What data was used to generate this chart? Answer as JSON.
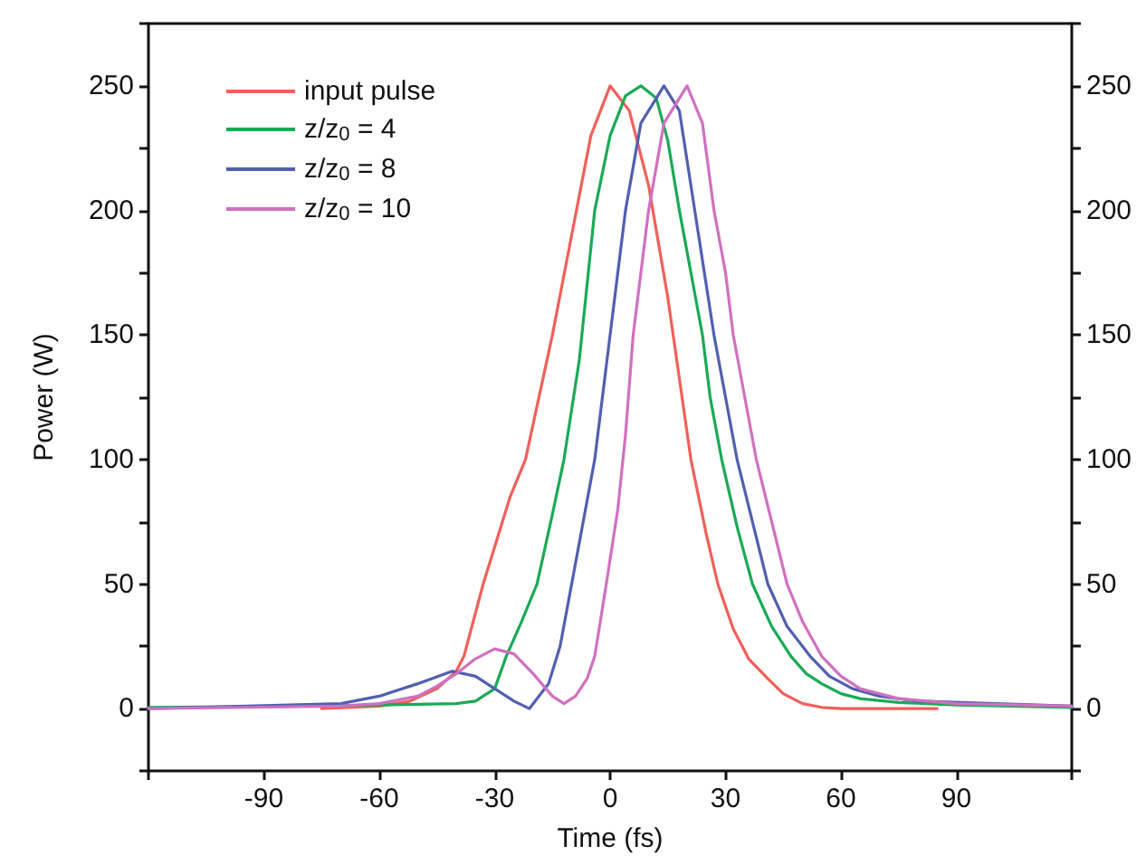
{
  "chart_data": {
    "type": "line",
    "xlabel": "Time (fs)",
    "ylabel": "Power (W)",
    "xlim": [
      -120,
      120
    ],
    "xticks": [
      {
        "value": -120,
        "label": null
      },
      -90,
      -60,
      -30,
      0,
      30,
      60,
      90,
      {
        "value": 120,
        "label": null
      }
    ],
    "ylim": [
      -25,
      275
    ],
    "yticks": [
      {
        "value": -25,
        "label": null
      },
      0,
      {
        "value": 25,
        "label": null
      },
      50,
      {
        "value": 75,
        "label": null
      },
      100,
      {
        "value": 125,
        "label": null
      },
      150,
      {
        "value": 175,
        "label": null
      },
      200,
      {
        "value": 225,
        "label": null
      },
      250,
      {
        "value": 275,
        "label": null
      }
    ],
    "y2lim": [
      -25,
      275
    ],
    "y2ticks": [
      {
        "value": -25,
        "label": null
      },
      0,
      {
        "value": 25,
        "label": null
      },
      50,
      {
        "value": 75,
        "label": null
      },
      100,
      {
        "value": 125,
        "label": null
      },
      150,
      {
        "value": 175,
        "label": null
      },
      200,
      {
        "value": 225,
        "label": null
      },
      250,
      {
        "value": 275,
        "label": null
      }
    ],
    "grid": false,
    "legend": "top left",
    "marker": "none",
    "line_style": "solid",
    "series": [
      {
        "name": "input pulse",
        "color": "#f0605a",
        "x": [
          -75,
          -60,
          -52,
          -45,
          -40,
          -38,
          -33,
          -30,
          -26,
          -22,
          -15,
          -10,
          -5,
          0,
          5,
          10,
          15,
          21,
          25,
          28,
          32,
          36,
          41,
          45,
          50,
          55,
          60,
          85
        ],
        "values": [
          0,
          1,
          3,
          8,
          15,
          21,
          50,
          65,
          85,
          100,
          150,
          190,
          230,
          250,
          240,
          210,
          165,
          100,
          70,
          50,
          32,
          20,
          12,
          6,
          2,
          0.5,
          0,
          0
        ]
      },
      {
        "name": "z/z$_{0}$ = 4",
        "color": "#1aaa55",
        "x": [
          -120,
          -80,
          -60,
          -40,
          -35,
          -30,
          -27,
          -23,
          -19,
          -15,
          -12,
          -8,
          -4,
          0,
          4,
          8,
          12,
          15,
          18,
          21,
          24,
          26,
          29,
          33,
          37,
          42,
          47,
          51,
          55,
          60,
          65,
          75,
          90,
          120
        ],
        "values": [
          0.5,
          1,
          1.5,
          2,
          3,
          8,
          21,
          35,
          50,
          78,
          100,
          140,
          200,
          230,
          246,
          250,
          245,
          228,
          200,
          175,
          150,
          125,
          100,
          73,
          50,
          33,
          21,
          14,
          10,
          6,
          4,
          2.5,
          1.5,
          0.5
        ]
      },
      {
        "name": "z/z$_{0}$ = 8",
        "color": "#5060b0",
        "x": [
          -120,
          -70,
          -60,
          -50,
          -41,
          -35,
          -30,
          -25,
          -21,
          -16,
          -13,
          -10,
          -7,
          -4,
          -2,
          0,
          4,
          8,
          14,
          18,
          22,
          27,
          30,
          33,
          37,
          41,
          46,
          52,
          57,
          63,
          70,
          80,
          100,
          120
        ],
        "values": [
          0,
          2,
          5,
          10,
          15,
          13,
          8,
          3,
          0,
          10,
          25,
          50,
          75,
          100,
          125,
          150,
          200,
          235,
          250,
          240,
          200,
          150,
          125,
          100,
          75,
          50,
          33,
          21,
          13,
          8,
          5,
          3,
          2,
          1
        ]
      },
      {
        "name": "z/z$_{0}$ = 10",
        "color": "#d070c0",
        "x": [
          -120,
          -70,
          -60,
          -50,
          -45,
          -40,
          -35,
          -30,
          -25,
          -20,
          -15,
          -12,
          -9,
          -6,
          -4,
          -1,
          2,
          4,
          6,
          10,
          14,
          20,
          24,
          27,
          30,
          32,
          35,
          38,
          42,
          46,
          50,
          55,
          60,
          65,
          75,
          90,
          120
        ],
        "values": [
          0,
          1,
          2,
          5,
          9,
          14,
          20,
          24,
          22,
          14,
          5,
          2,
          5,
          12,
          21,
          50,
          80,
          110,
          150,
          200,
          235,
          250,
          235,
          200,
          175,
          150,
          125,
          100,
          75,
          50,
          35,
          21,
          13,
          8,
          4,
          2,
          1
        ]
      }
    ]
  }
}
